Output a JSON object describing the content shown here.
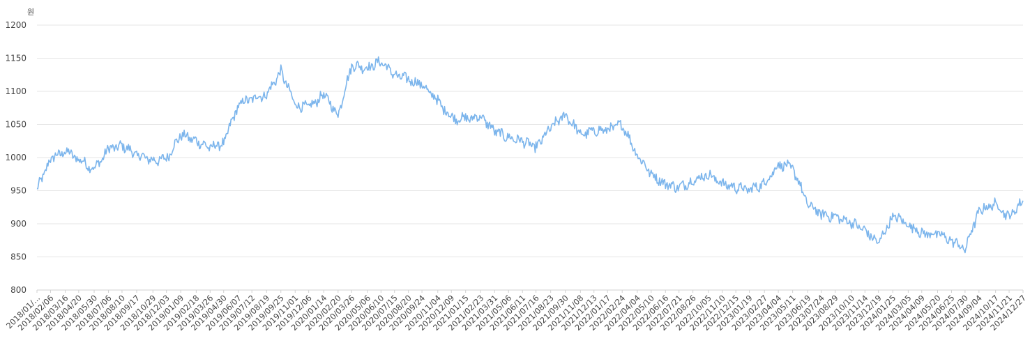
{
  "chart_data": {
    "type": "line",
    "unit_label": "원",
    "ylim": [
      800,
      1200
    ],
    "yticks": [
      800,
      850,
      900,
      950,
      1000,
      1050,
      1100,
      1150,
      1200
    ],
    "grid": true,
    "color": "#7cb5ec",
    "x_labels": [
      "2018/01/...",
      "2018/02/06",
      "2018/03/16",
      "2018/04/20",
      "2018/05/30",
      "2018/07/06",
      "2018/08/10",
      "2018/09/17",
      "2018/10/29",
      "2018/12/03",
      "2019/01/09",
      "2019/02/18",
      "2019/03/26",
      "2019/04/30",
      "2019/06/07",
      "2019/07/12",
      "2019/08/19",
      "2019/09/25",
      "2019/11/01",
      "2019/12/06",
      "2020/01/14",
      "2020/02/20",
      "2020/03/26",
      "2020/05/06",
      "2020/06/10",
      "2020/07/15",
      "2020/08/20",
      "2020/09/24",
      "2020/11/04",
      "2020/12/09",
      "2021/01/15",
      "2021/02/23",
      "2021/03/31",
      "2021/05/06",
      "2021/06/11",
      "2021/07/16",
      "2021/08/23",
      "2021/09/30",
      "2021/11/08",
      "2021/12/13",
      "2022/01/17",
      "2022/02/24",
      "2022/04/04",
      "2022/05/10",
      "2022/06/16",
      "2022/07/21",
      "2022/08/26",
      "2022/10/05",
      "2022/11/10",
      "2022/12/15",
      "2023/01/19",
      "2023/02/27",
      "2023/04/04",
      "2023/05/11",
      "2023/06/19",
      "2023/07/24",
      "2023/08/29",
      "2023/10/10",
      "2023/11/14",
      "2023/12/19",
      "2024/01/25",
      "2024/03/05",
      "2024/04/09",
      "2024/05/20",
      "2024/06/25",
      "2024/07/30",
      "2024/09/04",
      "2024/10/17",
      "2024/11/21",
      "2024/12/27"
    ],
    "x": [
      "2018-01-02",
      "2018-02-06",
      "2018-03-16",
      "2018-04-20",
      "2018-05-30",
      "2018-07-06",
      "2018-08-10",
      "2018-09-17",
      "2018-10-29",
      "2018-12-03",
      "2019-01-09",
      "2019-02-18",
      "2019-03-26",
      "2019-04-30",
      "2019-06-07",
      "2019-07-12",
      "2019-08-19",
      "2019-09-25",
      "2019-11-01",
      "2019-12-06",
      "2020-01-14",
      "2020-02-20",
      "2020-03-26",
      "2020-05-06",
      "2020-06-10",
      "2020-07-15",
      "2020-08-20",
      "2020-09-24",
      "2020-11-04",
      "2020-12-09",
      "2021-01-15",
      "2021-02-23",
      "2021-03-31",
      "2021-05-06",
      "2021-06-11",
      "2021-07-16",
      "2021-08-23",
      "2021-09-30",
      "2021-11-08",
      "2021-12-13",
      "2022-01-17",
      "2022-02-24",
      "2022-04-04",
      "2022-05-10",
      "2022-06-16",
      "2022-07-21",
      "2022-08-26",
      "2022-10-05",
      "2022-11-10",
      "2022-12-15",
      "2023-01-19",
      "2023-02-27",
      "2023-04-04",
      "2023-05-11",
      "2023-06-19",
      "2023-07-24",
      "2023-08-29",
      "2023-10-10",
      "2023-11-14",
      "2023-12-19",
      "2024-01-25",
      "2024-03-05",
      "2024-04-09",
      "2024-05-20",
      "2024-06-25",
      "2024-07-30",
      "2024-09-04",
      "2024-10-17",
      "2024-11-21",
      "2024-12-27"
    ],
    "values": [
      951,
      998,
      1010,
      998,
      982,
      1012,
      1018,
      1005,
      995,
      998,
      1035,
      1025,
      1015,
      1022,
      1080,
      1090,
      1095,
      1130,
      1080,
      1075,
      1095,
      1065,
      1140,
      1135,
      1145,
      1125,
      1118,
      1110,
      1085,
      1060,
      1058,
      1062,
      1040,
      1030,
      1025,
      1015,
      1045,
      1065,
      1035,
      1040,
      1042,
      1050,
      1005,
      975,
      960,
      955,
      965,
      975,
      960,
      955,
      952,
      960,
      990,
      985,
      930,
      915,
      910,
      902,
      890,
      870,
      912,
      900,
      885,
      885,
      875,
      862,
      920,
      930,
      910,
      935
    ]
  }
}
